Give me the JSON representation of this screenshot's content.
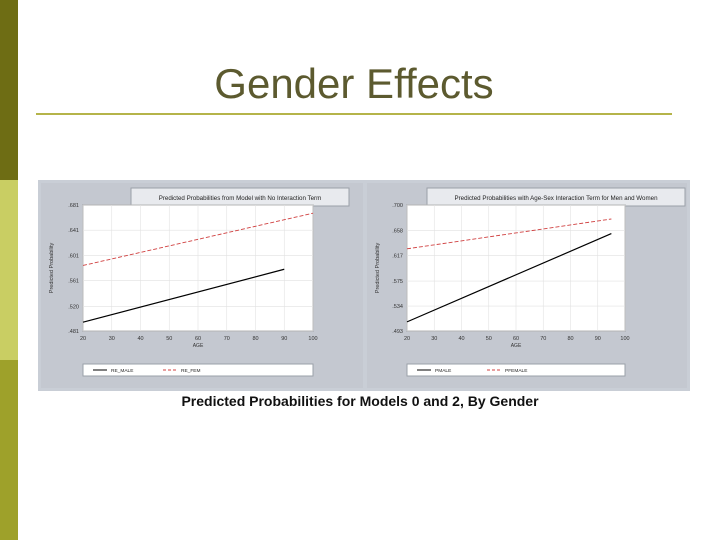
{
  "slide": {
    "title": "Gender Effects",
    "caption": "Predicted Probabilities for Models 0 and 2, By Gender",
    "colors": {
      "bar_dark": "#6e6d14",
      "bar_light": "#c9ce63",
      "bar_mid": "#9ea12a",
      "title_text": "#5c5a2f",
      "rule": "#b5b44a",
      "male_line": "#000000",
      "female_line": "#d04040"
    }
  },
  "chart_data": [
    {
      "type": "line",
      "title": "Predicted Probabilities from Model with No Interaction Term",
      "xlabel": "AGE",
      "ylabel": "Predicted Probability",
      "x_ticks": [
        "20",
        "30",
        "40",
        "50",
        "60",
        "70",
        "80",
        "90",
        "100"
      ],
      "y_ticks": [
        ".481",
        ".520",
        ".561",
        ".601",
        ".641",
        ".681"
      ],
      "xlim": [
        20,
        100
      ],
      "ylim": [
        0.481,
        0.681
      ],
      "grid": true,
      "legend_position": "bottom",
      "series": [
        {
          "name": "RE_MALE",
          "style": "solid",
          "color": "#000000",
          "x": [
            20,
            90
          ],
          "y": [
            0.495,
            0.579
          ]
        },
        {
          "name": "RE_FEM",
          "style": "dashed",
          "color": "#d04040",
          "x": [
            20,
            100
          ],
          "y": [
            0.585,
            0.668
          ]
        }
      ]
    },
    {
      "type": "line",
      "title": "Predicted Probabilities with Age-Sex Interaction Term for Men and Women",
      "xlabel": "AGE",
      "ylabel": "Predicted Probability",
      "x_ticks": [
        "20",
        "30",
        "40",
        "50",
        "60",
        "70",
        "80",
        "90",
        "100"
      ],
      "y_ticks": [
        ".493",
        ".534",
        ".575",
        ".617",
        ".658",
        ".700"
      ],
      "xlim": [
        20,
        100
      ],
      "ylim": [
        0.493,
        0.7
      ],
      "grid": true,
      "legend_position": "bottom",
      "series": [
        {
          "name": "PMALE",
          "style": "solid",
          "color": "#000000",
          "x": [
            20,
            95
          ],
          "y": [
            0.508,
            0.653
          ]
        },
        {
          "name": "PFEMALE",
          "style": "dashed",
          "color": "#d04040",
          "x": [
            20,
            95
          ],
          "y": [
            0.628,
            0.677
          ]
        }
      ]
    }
  ]
}
